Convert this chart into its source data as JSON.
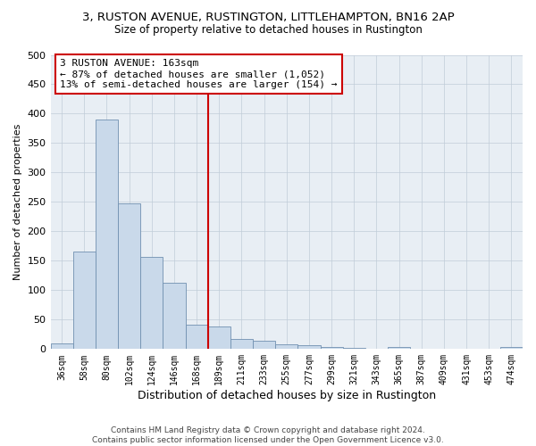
{
  "title1": "3, RUSTON AVENUE, RUSTINGTON, LITTLEHAMPTON, BN16 2AP",
  "title2": "Size of property relative to detached houses in Rustington",
  "xlabel": "Distribution of detached houses by size in Rustington",
  "ylabel": "Number of detached properties",
  "categories": [
    "36sqm",
    "58sqm",
    "80sqm",
    "102sqm",
    "124sqm",
    "146sqm",
    "168sqm",
    "189sqm",
    "211sqm",
    "233sqm",
    "255sqm",
    "277sqm",
    "299sqm",
    "321sqm",
    "343sqm",
    "365sqm",
    "387sqm",
    "409sqm",
    "431sqm",
    "453sqm",
    "474sqm"
  ],
  "values": [
    10,
    165,
    390,
    248,
    157,
    113,
    42,
    38,
    17,
    14,
    8,
    6,
    4,
    2,
    0,
    3,
    0,
    0,
    0,
    0,
    4
  ],
  "bar_color": "#c9d9ea",
  "bar_edge_color": "#7090b0",
  "vline_x": 6.5,
  "vline_color": "#cc0000",
  "annotation_line1": "3 RUSTON AVENUE: 163sqm",
  "annotation_line2": "← 87% of detached houses are smaller (1,052)",
  "annotation_line3": "13% of semi-detached houses are larger (154) →",
  "annotation_box_color": "#ffffff",
  "annotation_box_edge": "#cc0000",
  "ylim": [
    0,
    500
  ],
  "yticks": [
    0,
    50,
    100,
    150,
    200,
    250,
    300,
    350,
    400,
    450,
    500
  ],
  "footer": "Contains HM Land Registry data © Crown copyright and database right 2024.\nContains public sector information licensed under the Open Government Licence v3.0.",
  "bg_color": "#ffffff",
  "plot_bg_color": "#e8eef4",
  "grid_color": "#c0ccd8"
}
